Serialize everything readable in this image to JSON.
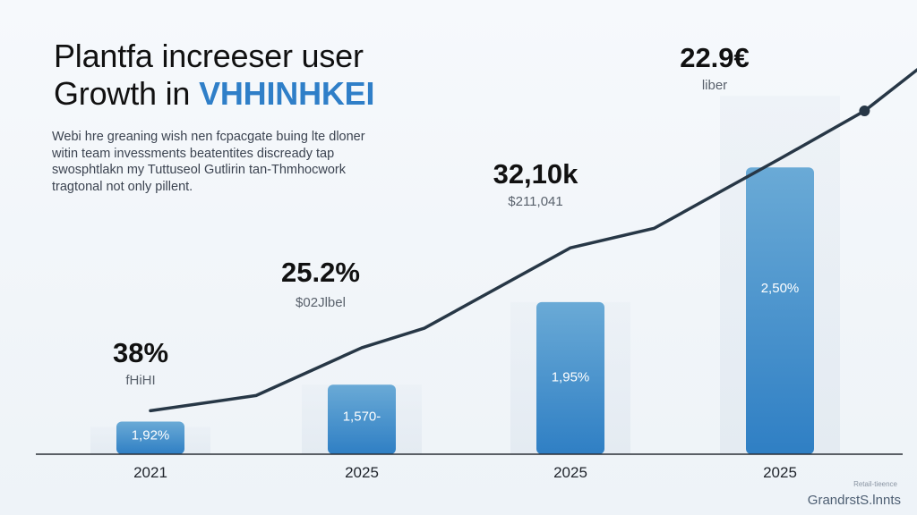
{
  "header": {
    "title_line1": "Plantfa increeser user",
    "title_line2_prefix": "Growth in ",
    "title_line2_accent": "VHHINHKEI",
    "subtitle": [
      "Webi hre greaning wish nen fcpacgate buing lte dloner",
      "witin team invessments beatentites discready tap",
      "swosphtlakn my Tuttuseol Gutlirin tan-Thmhocwork",
      "tragtonal not only pillent."
    ]
  },
  "footer": {
    "small_text": "Retail-tieence",
    "brand": "GrandrstS.lnnts"
  },
  "colors": {
    "bar_top": "#6aaad6",
    "bar_bottom": "#2f7fc4",
    "ghost_bar": "#e4ebf2",
    "line": "#273746",
    "accent": "#2f7fc8"
  },
  "chart_data": {
    "type": "bar",
    "categories": [
      "2021",
      "2025",
      "2025",
      "2025"
    ],
    "values": [
      1.5,
      3.2,
      7.0,
      13.2
    ],
    "ghost_values": [
      1.25,
      3.2,
      7.0,
      16.5
    ],
    "bar_labels": [
      "1,92%",
      "1,570-",
      "1,95%",
      "2,50%"
    ],
    "callouts": [
      {
        "value": "38%",
        "sub": "fHiHI"
      },
      {
        "value": "25.2%",
        "sub": "$02Jlbel"
      },
      {
        "value": "32,10k",
        "sub": "$211,041"
      },
      {
        "value": "22.9€",
        "sub": "liber"
      }
    ],
    "trend": {
      "x": [
        0,
        0.5,
        1,
        1.3,
        2,
        2.4,
        3,
        3.4,
        3.9
      ],
      "y": [
        2.0,
        2.7,
        4.9,
        5.8,
        9.5,
        10.4,
        13.6,
        15.8,
        19.6
      ]
    },
    "ylim": [
      0,
      20
    ],
    "grid": false,
    "legend": "none"
  }
}
